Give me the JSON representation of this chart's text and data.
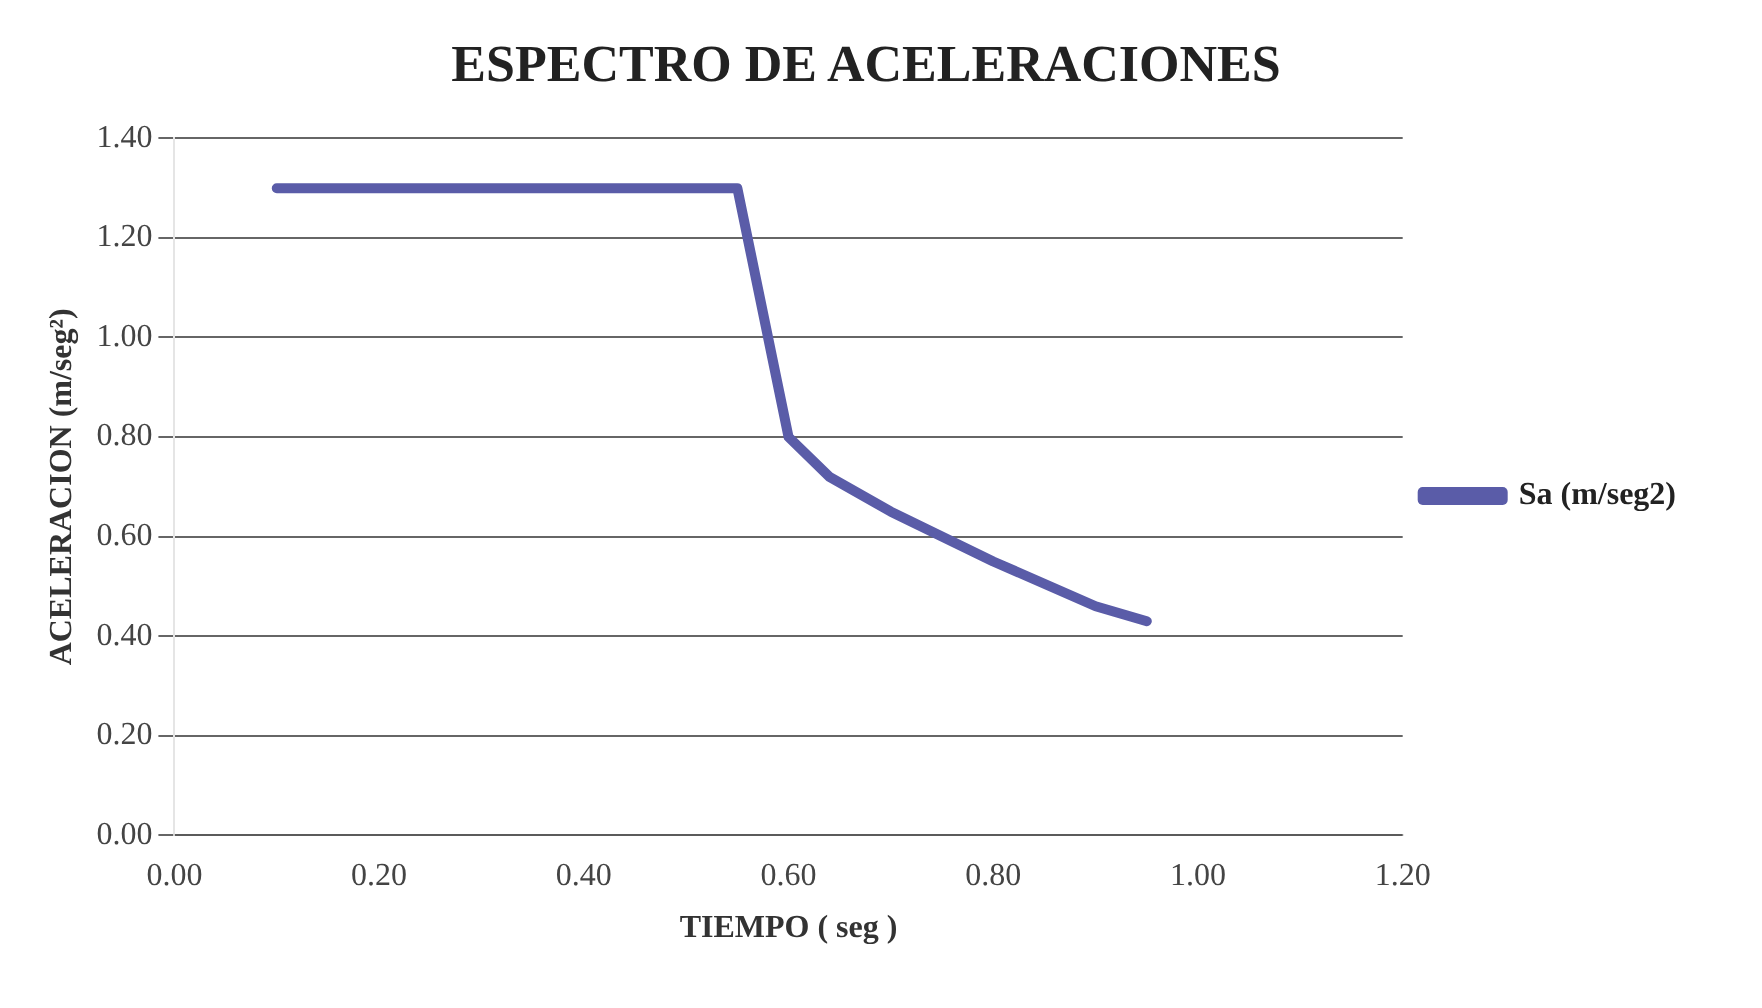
{
  "chart_data": {
    "type": "line",
    "title": "ESPECTRO DE ACELERACIONES",
    "xlabel": "TIEMPO ( seg )",
    "ylabel": "ACELERACION (m/seg²)",
    "x": [
      0.1,
      0.55,
      0.57,
      0.58,
      0.6,
      0.64,
      0.7,
      0.8,
      0.9,
      0.95
    ],
    "series": [
      {
        "name": "Sa (m/seg2)",
        "color": "#5a5ca8",
        "values": [
          1.3,
          1.3,
          1.1,
          1.0,
          0.8,
          0.72,
          0.65,
          0.55,
          0.46,
          0.43
        ]
      }
    ],
    "xlim": [
      0,
      1.2
    ],
    "xticks": [
      {
        "value": 0,
        "label": "0.00"
      },
      {
        "value": 0.2,
        "label": "0.20"
      },
      {
        "value": 0.4,
        "label": "0.40"
      },
      {
        "value": 0.6,
        "label": "0.60"
      },
      {
        "value": 0.8,
        "label": "0.80"
      },
      {
        "value": 1,
        "label": "1.00"
      },
      {
        "value": 1.2,
        "label": "1.20"
      }
    ],
    "ylim": [
      0,
      1.4
    ],
    "yticks": [
      {
        "value": 0,
        "label": "0.00"
      },
      {
        "value": 0.2,
        "label": "0.20"
      },
      {
        "value": 0.4,
        "label": "0.40"
      },
      {
        "value": 0.6,
        "label": "0.60"
      },
      {
        "value": 0.8,
        "label": "0.80"
      },
      {
        "value": 1,
        "label": "1.00"
      },
      {
        "value": 1.2,
        "label": "1.20"
      },
      {
        "value": 1.4,
        "label": "1.40"
      }
    ],
    "grid": "y",
    "legend": "right",
    "marker": "none",
    "line_style": "solid"
  }
}
